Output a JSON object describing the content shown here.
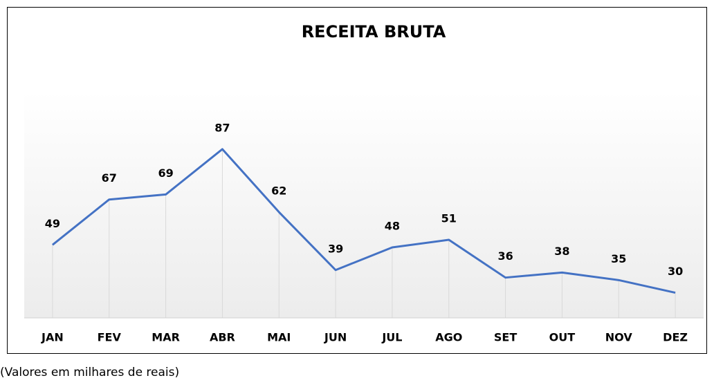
{
  "chart_data": {
    "type": "line",
    "title": "RECEITA BRUTA",
    "categories": [
      "JAN",
      "FEV",
      "MAR",
      "ABR",
      "MAI",
      "JUN",
      "JUL",
      "AGO",
      "SET",
      "OUT",
      "NOV",
      "DEZ"
    ],
    "values": [
      49,
      67,
      69,
      87,
      62,
      39,
      48,
      51,
      36,
      38,
      35,
      30
    ],
    "color": "#4472c4",
    "ylim": [
      20,
      110
    ],
    "drop_lines": true,
    "note": "(Valores em milhares de reais)"
  }
}
